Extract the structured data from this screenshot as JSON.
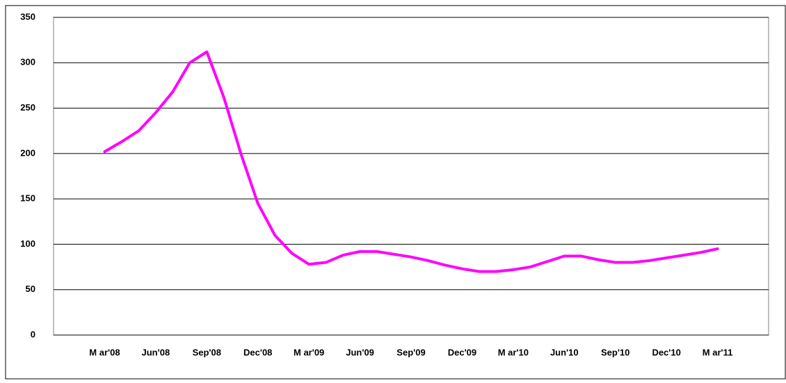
{
  "chart_data": {
    "type": "line",
    "categories": [
      null,
      null,
      null,
      "M ar'08",
      null,
      null,
      "Jun'08",
      null,
      null,
      "Sep'08",
      null,
      null,
      "Dec'08",
      null,
      null,
      "M ar'09",
      null,
      null,
      "Jun'09",
      null,
      null,
      "Sep'09",
      null,
      null,
      "Dec'09",
      null,
      null,
      "M ar'10",
      null,
      null,
      "Jun'10",
      null,
      null,
      "Sep'10",
      null,
      null,
      "Dec'10",
      null,
      null,
      "M ar'11",
      null,
      null,
      null
    ],
    "series": [
      {
        "color": "#ff00ff",
        "values": [
          null,
          null,
          null,
          202,
          213,
          225,
          245,
          268,
          300,
          312,
          262,
          200,
          145,
          110,
          90,
          78,
          80,
          88,
          92,
          92,
          89,
          86,
          82,
          77,
          73,
          70,
          70,
          72,
          75,
          81,
          87,
          87,
          83,
          80,
          80,
          82,
          85,
          88,
          91,
          95,
          null,
          null,
          null
        ]
      }
    ],
    "ylim": [
      0,
      350
    ],
    "yticks": [
      0,
      50,
      100,
      150,
      200,
      250,
      300,
      350
    ],
    "grid": true
  }
}
